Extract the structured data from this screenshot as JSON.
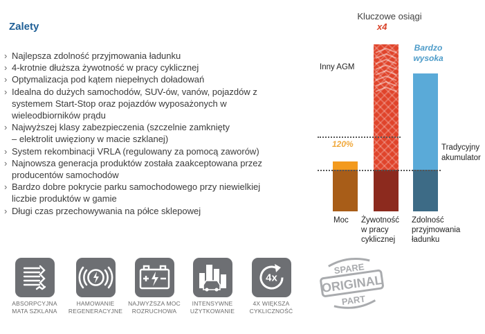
{
  "section": {
    "title": "Zalety",
    "benefits": [
      "Najlepsza zdolność przyjmowania ładunku",
      "4-krotnie dłuższa żywotność w pracy cyklicznej",
      "Optymalizacja pod kątem niepełnych doładowań",
      "Idealna do dużych samochodów, SUV-ów, vanów, pojazdów z\nsystemem Start-Stop oraz pojazdów wyposażonych w\nwieleodbiorników prądu",
      "Najwyższej klasy zabezpieczenia (szczelnie zamknięty\n– elektrolit uwięziony w macie szklanej)",
      "System rekombinacji VRLA (regulowany za pomocą zaworów)",
      "Najnowsza generacja produktów została zaakceptowana przez\nproducentów samochodów",
      "Bardzo dobre pokrycie parku samochodowego przy niewielkiej\nliczbie produktów w gamie",
      "Długi czas przechowywania na półce sklepowej"
    ]
  },
  "chart_data": {
    "type": "bar",
    "title": "Kluczowe osiągi",
    "categories": [
      "Moc",
      "Żywotność\nw pracy\ncyklicznej",
      "Zdolność\nprzyjmowania\nładunku"
    ],
    "reference_lines": [
      {
        "label": "Inny AGM",
        "value": 180
      },
      {
        "label": "Tradycyjny\nakumulator",
        "value": 100
      }
    ],
    "series": [
      {
        "values": [
          120,
          400,
          330
        ]
      }
    ],
    "data_labels": [
      "120%",
      "x4",
      "Bardzo\nwysoka"
    ],
    "colors": [
      "#f39a1e",
      "#e0442b",
      "#5aaad8"
    ],
    "colors_lower": [
      "#a85d18",
      "#8c2a1e",
      "#3d6b86"
    ],
    "ylim": [
      0,
      420
    ]
  },
  "features": [
    {
      "icon": "glass-mat-icon",
      "label": "ABSORPCYJNA\nMATA SZKLANA"
    },
    {
      "icon": "regenerative-braking-icon",
      "label": "HAMOWANIE\nREGENERACYJNE"
    },
    {
      "icon": "battery-spark-icon",
      "label": "NAJWYŻSZA MOC\nROZRUCHOWA"
    },
    {
      "icon": "city-traffic-icon",
      "label": "INTENSYWNE\nUŻYTKOWANIE"
    },
    {
      "icon": "cycle-4x-icon",
      "label": "4X WIĘKSZA\nCYKLICZNOŚĆ"
    }
  ],
  "stamp": {
    "icon": "spare-original-part-stamp",
    "line1": "SPARE",
    "line2": "ORIGINAL",
    "line3": "PART"
  }
}
